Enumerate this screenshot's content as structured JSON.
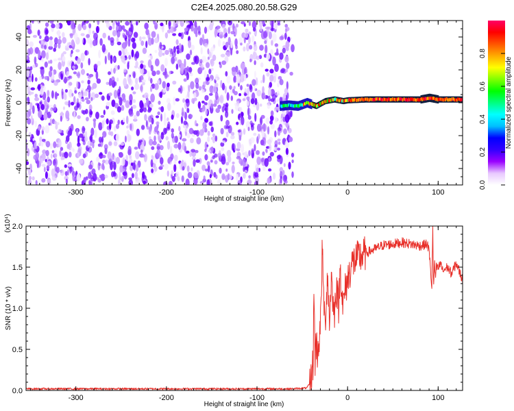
{
  "chart_data": [
    {
      "type": "heatmap",
      "title": "C2E4.2025.080.20.58.G29",
      "xlabel": "Height of straight line (km)",
      "ylabel": "Frequency (Hz)",
      "xlim": [
        -355,
        127
      ],
      "ylim": [
        -50,
        50
      ],
      "xticks": [
        -300,
        -200,
        -100,
        0,
        100
      ],
      "yticks": [
        -40,
        -20,
        0,
        20,
        40
      ],
      "grid": false,
      "colorbar": {
        "label": "Normalized spectral amplitude",
        "range": [
          0,
          1
        ],
        "ticks": [
          "0.0",
          "0.2",
          "0.4",
          "0.6",
          "0.8"
        ],
        "colors": [
          "#ffffff",
          "#e8c8ff",
          "#9900ff",
          "#3300ff",
          "#0000ff",
          "#00bfff",
          "#00ffff",
          "#00ff80",
          "#00ff00",
          "#80ff00",
          "#ffff00",
          "#ffaa00",
          "#ff5500",
          "#ff0000",
          "#ff0066"
        ]
      },
      "noise_region": {
        "x_range": [
          -355,
          -68
        ],
        "freq_range": [
          -50,
          50
        ],
        "amplitude": "low (0.0-0.15)"
      },
      "tone_track": {
        "x_range": [
          -75,
          127
        ],
        "freq": [
          [
            -75,
            -2
          ],
          [
            -65,
            -1.5
          ],
          [
            -55,
            -2
          ],
          [
            -45,
            0
          ],
          [
            -35,
            -2
          ],
          [
            -25,
            1
          ],
          [
            -15,
            2
          ],
          [
            -5,
            1
          ],
          [
            0,
            1.5
          ],
          [
            20,
            2
          ],
          [
            50,
            2
          ],
          [
            80,
            2
          ],
          [
            90,
            3
          ],
          [
            100,
            2
          ],
          [
            127,
            2
          ]
        ],
        "peak_amplitude": 0.95
      }
    },
    {
      "type": "line",
      "title": "",
      "xlabel": "Height of straight line (km)",
      "ylabel": "SNR (10 * v/v)",
      "y_multiplier": "(x10⁴)",
      "xlim": [
        -355,
        127
      ],
      "ylim": [
        0,
        2.0
      ],
      "xticks": [
        -300,
        -200,
        -100,
        0,
        100
      ],
      "yticks": [
        "0.0",
        "0.5",
        "1.0",
        "1.5",
        "2.0"
      ],
      "grid": false,
      "series": [
        {
          "color": "#e8302a",
          "x": [
            -355,
            -300,
            -200,
            -100,
            -60,
            -45,
            -42,
            -40,
            -38,
            -37,
            -36,
            -35,
            -33,
            -32,
            -30,
            -28,
            -25,
            -22,
            -20,
            -18,
            -15,
            -12,
            -10,
            -8,
            -5,
            -3,
            0,
            5,
            10,
            20,
            30,
            40,
            50,
            60,
            70,
            80,
            88,
            90,
            92,
            93,
            94,
            95,
            96,
            97,
            98,
            100,
            103,
            105,
            110,
            115,
            120,
            125,
            127
          ],
          "y": [
            0.02,
            0.02,
            0.02,
            0.02,
            0.02,
            0.03,
            0.08,
            0.15,
            0.35,
            1.32,
            0.3,
            0.6,
            0.45,
            0.58,
            0.75,
            1.7,
            0.75,
            1.45,
            0.8,
            1.4,
            0.9,
            1.3,
            1.0,
            1.5,
            1.0,
            1.2,
            1.35,
            1.55,
            1.6,
            1.67,
            1.72,
            1.77,
            1.78,
            1.8,
            1.78,
            1.76,
            1.78,
            1.7,
            1.4,
            1.25,
            2.0,
            1.2,
            1.6,
            1.35,
            1.5,
            1.48,
            1.55,
            1.45,
            1.5,
            1.42,
            1.55,
            1.4,
            1.35
          ]
        }
      ]
    }
  ]
}
